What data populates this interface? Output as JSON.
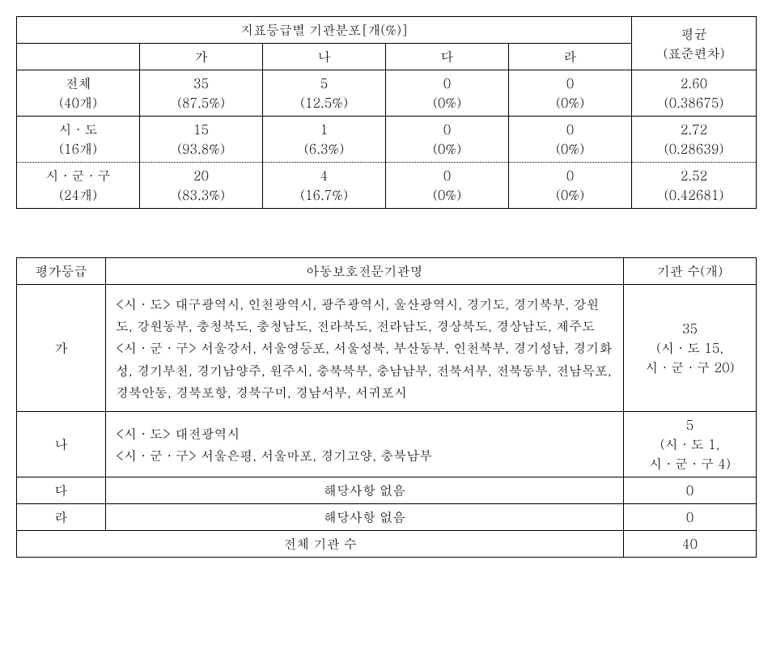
{
  "table1": {
    "header_span": "지표등급별 기관분포[개(%)]",
    "avg_header_1": "평균",
    "avg_header_2": "(표준편차)",
    "cols": {
      "ga": "가",
      "na": "나",
      "da": "다",
      "ra": "라"
    },
    "rows": [
      {
        "label1": "전체",
        "label2": "(40개)",
        "ga1": "35",
        "ga2": "(87.5%)",
        "na1": "5",
        "na2": "(12.5%)",
        "da1": "0",
        "da2": "(0%)",
        "ra1": "0",
        "ra2": "(0%)",
        "avg1": "2.60",
        "avg2": "(0.38675)"
      },
      {
        "label1": "시 · 도",
        "label2": "(16개)",
        "ga1": "15",
        "ga2": "(93.8%)",
        "na1": "1",
        "na2": "(6.3%)",
        "da1": "0",
        "da2": "(0%)",
        "ra1": "0",
        "ra2": "(0%)",
        "avg1": "2.72",
        "avg2": "(0.28639)"
      },
      {
        "label1": "시 · 군 · 구",
        "label2": "(24개)",
        "ga1": "20",
        "ga2": "(83.3%)",
        "na1": "4",
        "na2": "(16.7%)",
        "da1": "0",
        "da2": "(0%)",
        "ra1": "0",
        "ra2": "(0%)",
        "avg1": "2.52",
        "avg2": "(0.42681)"
      }
    ]
  },
  "table2": {
    "headers": {
      "grade": "평가등급",
      "name": "아동보호전문기관명",
      "count": "기관 수(개)"
    },
    "rows": [
      {
        "grade": "가",
        "name": "<시 · 도> 대구광역시, 인천광역시, 광주광역시, 울산광역시, 경기도, 경기북부,  강원도, 강원동부, 충청북도, 충청남도, 전라북도, 전라남도, 경상북도, 경상남도, 제주도\n<시 · 군 · 구> 서울강서, 서울영등포, 서울성북, 부산동부, 인천북부, 경기성남, 경기화성, 경기부천, 경기남양주, 원주시, 충북북부, 충남남부, 전북서부, 전북동부, 전남목포, 경북안동, 경북포항, 경북구미, 경남서부, 서귀포시",
        "count": "35\n(시 · 도 15,\n시 · 군 · 구 20)"
      },
      {
        "grade": "나",
        "name": "<시 · 도> 대전광역시\n<시 · 군 · 구> 서울은평, 서울마포, 경기고양, 충북남부",
        "count": "5\n(시 · 도 1,\n시 · 군 · 구 4)"
      },
      {
        "grade": "다",
        "name": "해당사항 없음",
        "count": "0"
      },
      {
        "grade": "라",
        "name": "해당사항 없음",
        "count": "0"
      }
    ],
    "total_label": "전체 기관 수",
    "total_value": "40"
  }
}
